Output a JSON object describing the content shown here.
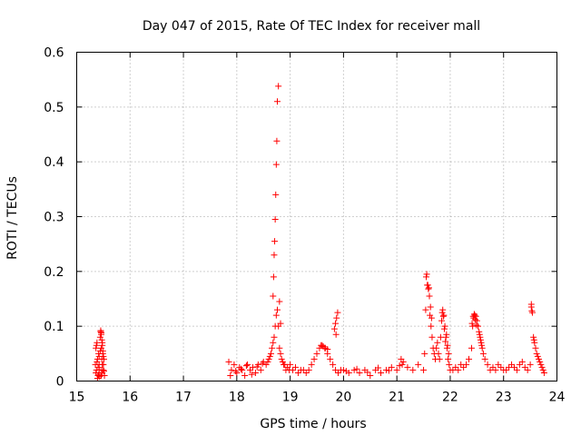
{
  "chart_data": {
    "type": "scatter",
    "title": "Day 047 of 2015, Rate Of TEC Index for receiver mall",
    "xlabel": "GPS time / hours",
    "ylabel": "ROTI / TECUs",
    "xlim": [
      15,
      24
    ],
    "ylim": [
      0,
      0.6
    ],
    "x_ticks": [
      "15",
      "16",
      "17",
      "18",
      "19",
      "20",
      "21",
      "22",
      "23",
      "24"
    ],
    "y_ticks": [
      "0",
      "0.1",
      "0.2",
      "0.3",
      "0.4",
      "0.5",
      "0.6"
    ],
    "grid": true,
    "marker": "+",
    "color": "#ff0000",
    "series": [
      {
        "x": [
          15.35,
          15.36,
          15.37,
          15.38,
          15.39,
          15.4,
          15.41,
          15.42,
          15.43,
          15.44,
          15.45,
          15.46,
          15.47,
          15.48,
          15.49,
          15.5,
          15.51,
          15.52,
          15.36,
          15.38,
          15.4,
          15.42,
          15.44,
          15.46,
          15.48,
          15.5,
          15.45,
          15.46,
          15.47,
          15.48,
          15.49,
          15.5,
          15.46,
          15.48,
          15.39,
          15.41,
          15.43,
          15.47,
          15.51,
          15.37,
          17.85,
          17.9,
          17.95,
          18.0,
          18.05,
          18.1,
          18.15,
          18.2,
          18.25,
          18.3,
          18.35,
          18.4,
          18.45,
          18.5,
          17.88,
          17.98,
          18.08,
          18.18,
          18.28,
          18.38,
          18.48,
          18.55,
          18.58,
          18.6,
          18.62,
          18.64,
          18.66,
          18.68,
          18.7,
          18.72,
          18.74,
          18.76,
          18.78,
          18.8,
          18.82,
          18.84,
          18.86,
          18.88,
          18.9,
          18.92,
          18.95,
          18.98,
          19.0,
          19.05,
          19.1,
          19.15,
          19.2,
          19.25,
          19.3,
          18.68,
          18.69,
          18.7,
          18.71,
          18.72,
          18.73,
          18.74,
          18.75,
          18.76,
          18.78,
          18.8,
          18.82,
          19.35,
          19.4,
          19.45,
          19.5,
          19.55,
          19.6,
          19.65,
          19.7,
          19.75,
          19.8,
          19.85,
          19.9,
          19.95,
          19.58,
          19.62,
          19.66,
          19.7,
          19.83,
          19.85,
          19.87,
          19.89,
          19.86,
          20.0,
          20.1,
          20.2,
          20.3,
          20.4,
          20.5,
          20.6,
          20.7,
          20.8,
          20.9,
          21.0,
          21.1,
          21.2,
          21.3,
          21.4,
          20.05,
          20.25,
          20.45,
          20.65,
          20.85,
          21.05,
          21.08,
          21.12,
          21.5,
          21.52,
          21.54,
          21.56,
          21.58,
          21.6,
          21.62,
          21.64,
          21.66,
          21.68,
          21.7,
          21.72,
          21.74,
          21.76,
          21.78,
          21.8,
          21.82,
          21.84,
          21.86,
          21.88,
          21.9,
          21.92,
          21.94,
          21.96,
          21.98,
          22.0,
          21.55,
          21.57,
          21.59,
          21.61,
          21.63,
          21.65,
          21.85,
          21.87,
          21.89,
          21.91,
          21.93,
          21.95,
          21.97,
          22.05,
          22.1,
          22.15,
          22.2,
          22.25,
          22.3,
          22.35,
          22.4,
          22.42,
          22.44,
          22.46,
          22.48,
          22.5,
          22.52,
          22.54,
          22.56,
          22.58,
          22.6,
          22.62,
          22.65,
          22.7,
          22.75,
          22.8,
          22.85,
          22.9,
          22.95,
          23.0,
          22.41,
          22.43,
          22.45,
          22.47,
          22.49,
          22.55,
          22.57,
          22.59,
          23.05,
          23.1,
          23.15,
          23.2,
          23.25,
          23.3,
          23.35,
          23.4,
          23.45,
          23.5,
          23.52,
          23.54,
          23.56,
          23.58,
          23.6,
          23.62,
          23.64,
          23.66,
          23.68,
          23.7,
          23.72,
          23.74,
          23.76,
          23.52,
          23.53,
          23.57
        ],
        "y": [
          0.03,
          0.06,
          0.02,
          0.07,
          0.04,
          0.01,
          0.05,
          0.03,
          0.02,
          0.08,
          0.09,
          0.06,
          0.04,
          0.03,
          0.05,
          0.02,
          0.04,
          0.01,
          0.015,
          0.035,
          0.025,
          0.045,
          0.055,
          0.085,
          0.07,
          0.03,
          0.092,
          0.088,
          0.075,
          0.065,
          0.055,
          0.045,
          0.01,
          0.015,
          0.005,
          0.012,
          0.008,
          0.02,
          0.018,
          0.065,
          0.035,
          0.02,
          0.03,
          0.015,
          0.025,
          0.02,
          0.01,
          0.03,
          0.02,
          0.025,
          0.015,
          0.03,
          0.02,
          0.035,
          0.01,
          0.018,
          0.022,
          0.028,
          0.012,
          0.026,
          0.032,
          0.03,
          0.035,
          0.04,
          0.045,
          0.05,
          0.06,
          0.07,
          0.08,
          0.1,
          0.12,
          0.13,
          0.1,
          0.06,
          0.05,
          0.04,
          0.035,
          0.03,
          0.03,
          0.02,
          0.025,
          0.02,
          0.03,
          0.02,
          0.025,
          0.015,
          0.02,
          0.02,
          0.015,
          0.155,
          0.19,
          0.23,
          0.255,
          0.295,
          0.34,
          0.395,
          0.438,
          0.51,
          0.538,
          0.145,
          0.105,
          0.02,
          0.03,
          0.04,
          0.05,
          0.06,
          0.065,
          0.06,
          0.05,
          0.04,
          0.03,
          0.02,
          0.015,
          0.02,
          0.065,
          0.063,
          0.06,
          0.058,
          0.095,
          0.105,
          0.115,
          0.125,
          0.085,
          0.02,
          0.015,
          0.02,
          0.015,
          0.02,
          0.01,
          0.02,
          0.015,
          0.02,
          0.025,
          0.02,
          0.03,
          0.025,
          0.02,
          0.03,
          0.018,
          0.022,
          0.016,
          0.024,
          0.019,
          0.028,
          0.04,
          0.035,
          0.02,
          0.05,
          0.13,
          0.195,
          0.175,
          0.17,
          0.12,
          0.1,
          0.08,
          0.06,
          0.05,
          0.04,
          0.06,
          0.07,
          0.05,
          0.04,
          0.08,
          0.11,
          0.13,
          0.12,
          0.1,
          0.08,
          0.06,
          0.04,
          0.03,
          0.02,
          0.19,
          0.175,
          0.168,
          0.155,
          0.135,
          0.115,
          0.125,
          0.118,
          0.095,
          0.072,
          0.085,
          0.065,
          0.05,
          0.02,
          0.025,
          0.02,
          0.03,
          0.025,
          0.03,
          0.04,
          0.06,
          0.1,
          0.115,
          0.12,
          0.118,
          0.11,
          0.1,
          0.09,
          0.08,
          0.07,
          0.06,
          0.05,
          0.04,
          0.03,
          0.02,
          0.025,
          0.02,
          0.03,
          0.025,
          0.02,
          0.105,
          0.118,
          0.122,
          0.112,
          0.102,
          0.085,
          0.075,
          0.065,
          0.02,
          0.025,
          0.03,
          0.025,
          0.02,
          0.03,
          0.035,
          0.025,
          0.02,
          0.03,
          0.14,
          0.125,
          0.08,
          0.07,
          0.06,
          0.05,
          0.045,
          0.04,
          0.035,
          0.03,
          0.025,
          0.02,
          0.015,
          0.135,
          0.128,
          0.075
        ]
      }
    ]
  }
}
